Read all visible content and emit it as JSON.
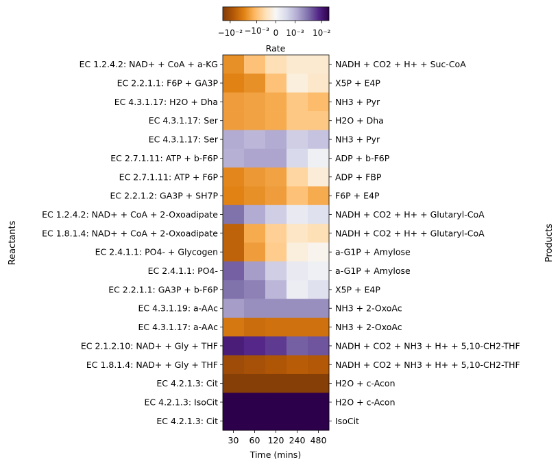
{
  "chart_data": {
    "type": "heatmap",
    "xlabel": "Time (mins)",
    "ylabel": "Reactants",
    "ylabel_right": "Products",
    "colorbar_label": "Rate",
    "colorbar_ticks": [
      "−10⁻²",
      "−10⁻³",
      "0",
      "10⁻³",
      "10⁻²"
    ],
    "x_categories": [
      "30",
      "60",
      "120",
      "240",
      "480"
    ],
    "reactants": [
      "EC 1.2.4.2: NAD+ + CoA + a-KG",
      "EC 2.2.1.1: F6P + GA3P",
      "EC 4.3.1.17: H2O + Dha",
      "EC 4.3.1.17: Ser",
      "EC 4.3.1.17: Ser",
      "EC 2.7.1.11: ATP + b-F6P",
      "EC 2.7.1.11: ATP + F6P",
      "EC 2.2.1.2: GA3P + SH7P",
      "EC 1.2.4.2: NAD+ + CoA + 2-Oxoadipate",
      "EC 1.8.1.4: NAD+ + CoA + 2-Oxoadipate",
      "EC 2.4.1.1: PO4- + Glycogen",
      "EC 2.4.1.1: PO4-",
      "EC 2.2.1.1: GA3P + b-F6P",
      "EC 4.3.1.19: a-AAc",
      "EC 4.3.1.17: a-AAc",
      "EC 2.1.2.10: NAD+ + Gly + THF",
      "EC 1.8.1.4: NAD+ + Gly + THF",
      "EC 4.2.1.3: Cit",
      "EC 4.2.1.3: IsoCit",
      "EC 4.2.1.3: Cit"
    ],
    "products": [
      "NADH + CO2 + H+ + Suc-CoA",
      "X5P + E4P",
      "NH3 + Pyr",
      "H2O + Dha",
      "NH3 + Pyr",
      "ADP + b-F6P",
      "ADP + FBP",
      "F6P + E4P",
      "NADH + CO2 + H+ + Glutaryl-CoA",
      "NADH + CO2 + H+ + Glutaryl-CoA",
      "a-G1P + Amylose",
      "a-G1P + Amylose",
      "X5P + E4P",
      "NH3 + 2-OxoAc",
      "NH3 + 2-OxoAc",
      "NADH + CO2 + NH3 + H+ + 5,10-CH2-THF",
      "NADH + CO2 + NH3 + H+ + 5,10-CH2-THF",
      "H2O + c-Acon",
      "H2O + c-Acon",
      "IsoCit"
    ],
    "colormap": [
      "#7f3b08",
      "#b35806",
      "#e08214",
      "#fdb863",
      "#fee0b6",
      "#f7f7f7",
      "#d8daeb",
      "#b2abd2",
      "#8073ac",
      "#542788",
      "#2d004b"
    ],
    "values_normalized": [
      [
        -0.55,
        -0.35,
        -0.2,
        -0.12,
        -0.12
      ],
      [
        -0.6,
        -0.55,
        -0.35,
        -0.08,
        -0.14
      ],
      [
        -0.5,
        -0.48,
        -0.45,
        -0.32,
        -0.38
      ],
      [
        -0.5,
        -0.48,
        -0.45,
        -0.32,
        -0.32
      ],
      [
        0.4,
        0.35,
        0.4,
        0.25,
        0.3
      ],
      [
        0.38,
        0.42,
        0.42,
        0.2,
        0.05
      ],
      [
        -0.58,
        -0.52,
        -0.48,
        -0.25,
        -0.1
      ],
      [
        -0.6,
        -0.55,
        -0.5,
        -0.35,
        -0.45
      ],
      [
        0.6,
        0.4,
        0.25,
        0.1,
        0.15
      ],
      [
        -0.75,
        -0.45,
        -0.28,
        -0.15,
        -0.2
      ],
      [
        -0.75,
        -0.5,
        -0.3,
        -0.08,
        -0.03
      ],
      [
        0.65,
        0.45,
        0.25,
        0.1,
        0.05
      ],
      [
        0.6,
        0.55,
        0.35,
        0.07,
        0.15
      ],
      [
        0.45,
        0.5,
        0.5,
        0.5,
        0.5
      ],
      [
        -0.65,
        -0.7,
        -0.68,
        -0.68,
        -0.68
      ],
      [
        0.85,
        0.8,
        0.75,
        0.65,
        0.68
      ],
      [
        -0.88,
        -0.85,
        -0.82,
        -0.78,
        -0.8
      ],
      [
        -0.97,
        -0.97,
        -0.97,
        -0.97,
        -0.97
      ],
      [
        1.0,
        1.0,
        1.0,
        1.0,
        1.0
      ],
      [
        1.0,
        1.0,
        1.0,
        1.0,
        1.0
      ]
    ]
  }
}
